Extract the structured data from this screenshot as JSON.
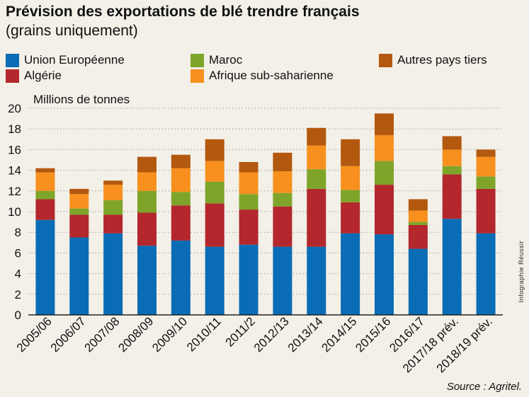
{
  "title": "Prévision des exportations de blé trendre français",
  "subtitle": "(grains uniquement)",
  "credit": "Infographie Réussir",
  "source": "Source : Agritel.",
  "colors": {
    "background": "#f3f0e8",
    "grid": "#9a9a9a",
    "axis": "#222222"
  },
  "chart_data": {
    "type": "bar",
    "stacked": true,
    "ylabel": "Millions de tonnes",
    "ylim": [
      0,
      20
    ],
    "yticks": [
      0,
      2,
      4,
      6,
      8,
      10,
      12,
      14,
      16,
      18,
      20
    ],
    "grid": true,
    "legend_position": "top",
    "categories": [
      "2005/06",
      "2006/07",
      "2007/08",
      "2008/09",
      "2009/10",
      "2010/11",
      "2011/2",
      "2012/13",
      "2013/14",
      "2014/15",
      "2015/16",
      "2016/17",
      "2017/18 prév.",
      "2018/19 prév."
    ],
    "series": [
      {
        "name": "Union Européenne",
        "color": "#0a6cb5",
        "values": [
          9.2,
          7.5,
          7.9,
          6.7,
          7.2,
          6.6,
          6.8,
          6.6,
          6.6,
          7.9,
          7.8,
          6.4,
          9.3,
          7.9
        ]
      },
      {
        "name": "Algérie",
        "color": "#b3272d",
        "values": [
          2.0,
          2.2,
          1.8,
          3.2,
          3.4,
          4.2,
          3.4,
          3.9,
          5.6,
          3.0,
          4.8,
          2.3,
          4.3,
          4.3
        ]
      },
      {
        "name": "Maroc",
        "color": "#7ea52a",
        "values": [
          0.8,
          0.6,
          1.4,
          2.1,
          1.3,
          2.1,
          1.5,
          1.3,
          1.9,
          1.2,
          2.3,
          0.3,
          0.8,
          1.2
        ]
      },
      {
        "name": "Afrique sub-saharienne",
        "color": "#f7901e",
        "values": [
          1.8,
          1.4,
          1.5,
          1.8,
          2.3,
          2.0,
          2.1,
          2.1,
          2.3,
          2.3,
          2.5,
          1.1,
          1.6,
          1.9
        ]
      },
      {
        "name": "Autres pays tiers",
        "color": "#b3580f",
        "values": [
          0.4,
          0.5,
          0.4,
          1.5,
          1.3,
          2.1,
          1.0,
          1.8,
          1.7,
          2.6,
          2.1,
          1.1,
          1.3,
          0.7
        ]
      }
    ]
  }
}
